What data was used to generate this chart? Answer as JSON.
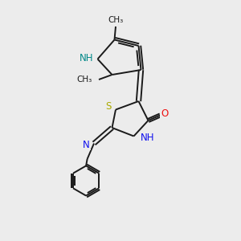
{
  "background_color": "#ececec",
  "bond_color": "#1a1a1a",
  "bond_width": 1.4,
  "atom_colors": {
    "N": "#1010ee",
    "S": "#aaaa00",
    "O": "#ee1010",
    "NH_label": "#008888",
    "C": "#1a1a1a"
  },
  "font_size_atom": 8.5,
  "font_size_small": 8
}
